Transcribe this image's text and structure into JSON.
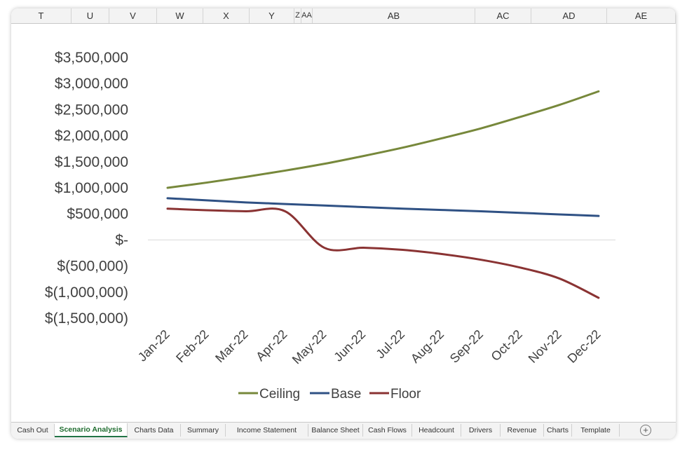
{
  "columns": [
    "T",
    "U",
    "V",
    "W",
    "X",
    "Y",
    "Z",
    "AA",
    "AB",
    "AC",
    "AD",
    "AE"
  ],
  "sheet_tabs": [
    {
      "label": "Cash Out",
      "active": false
    },
    {
      "label": "Scenario Analysis",
      "active": true
    },
    {
      "label": "Charts Data",
      "active": false
    },
    {
      "label": "Summary",
      "active": false
    },
    {
      "label": "Income Statement",
      "active": false
    },
    {
      "label": "Balance Sheet",
      "active": false
    },
    {
      "label": "Cash Flows",
      "active": false
    },
    {
      "label": "Headcount",
      "active": false
    },
    {
      "label": "Drivers",
      "active": false
    },
    {
      "label": "Revenue",
      "active": false
    },
    {
      "label": "Charts",
      "active": false
    },
    {
      "label": "Template",
      "active": false
    }
  ],
  "add_sheet_label": "+",
  "chart_data": {
    "type": "line",
    "title": "",
    "xlabel": "",
    "ylabel": "",
    "categories": [
      "Jan-22",
      "Feb-22",
      "Mar-22",
      "Apr-22",
      "May-22",
      "Jun-22",
      "Jul-22",
      "Aug-22",
      "Sep-22",
      "Oct-22",
      "Nov-22",
      "Dec-22"
    ],
    "ylim": [
      -1500000,
      3500000
    ],
    "yticks": [
      3500000,
      3000000,
      2500000,
      2000000,
      1500000,
      1000000,
      500000,
      0,
      -500000,
      -1000000,
      -1500000
    ],
    "ytick_labels": [
      "$3,500,000",
      "$3,000,000",
      "$2,500,000",
      "$2,000,000",
      "$1,500,000",
      "$1,000,000",
      "$500,000",
      "$-",
      "$(500,000)",
      "$(1,000,000)",
      "$(1,500,000)"
    ],
    "grid": false,
    "legend_position": "bottom",
    "series": [
      {
        "name": "Ceiling",
        "color": "#77883b",
        "values": [
          1000000,
          1100000,
          1210000,
          1330000,
          1460000,
          1610000,
          1770000,
          1950000,
          2140000,
          2360000,
          2590000,
          2850000
        ]
      },
      {
        "name": "Base",
        "color": "#2f5184",
        "values": [
          800000,
          760000,
          720000,
          690000,
          660000,
          630000,
          600000,
          575000,
          550000,
          520000,
          490000,
          460000
        ]
      },
      {
        "name": "Floor",
        "color": "#8a3333",
        "values": [
          600000,
          570000,
          550000,
          550000,
          -150000,
          -150000,
          -190000,
          -270000,
          -380000,
          -530000,
          -740000,
          -1110000
        ]
      }
    ]
  }
}
